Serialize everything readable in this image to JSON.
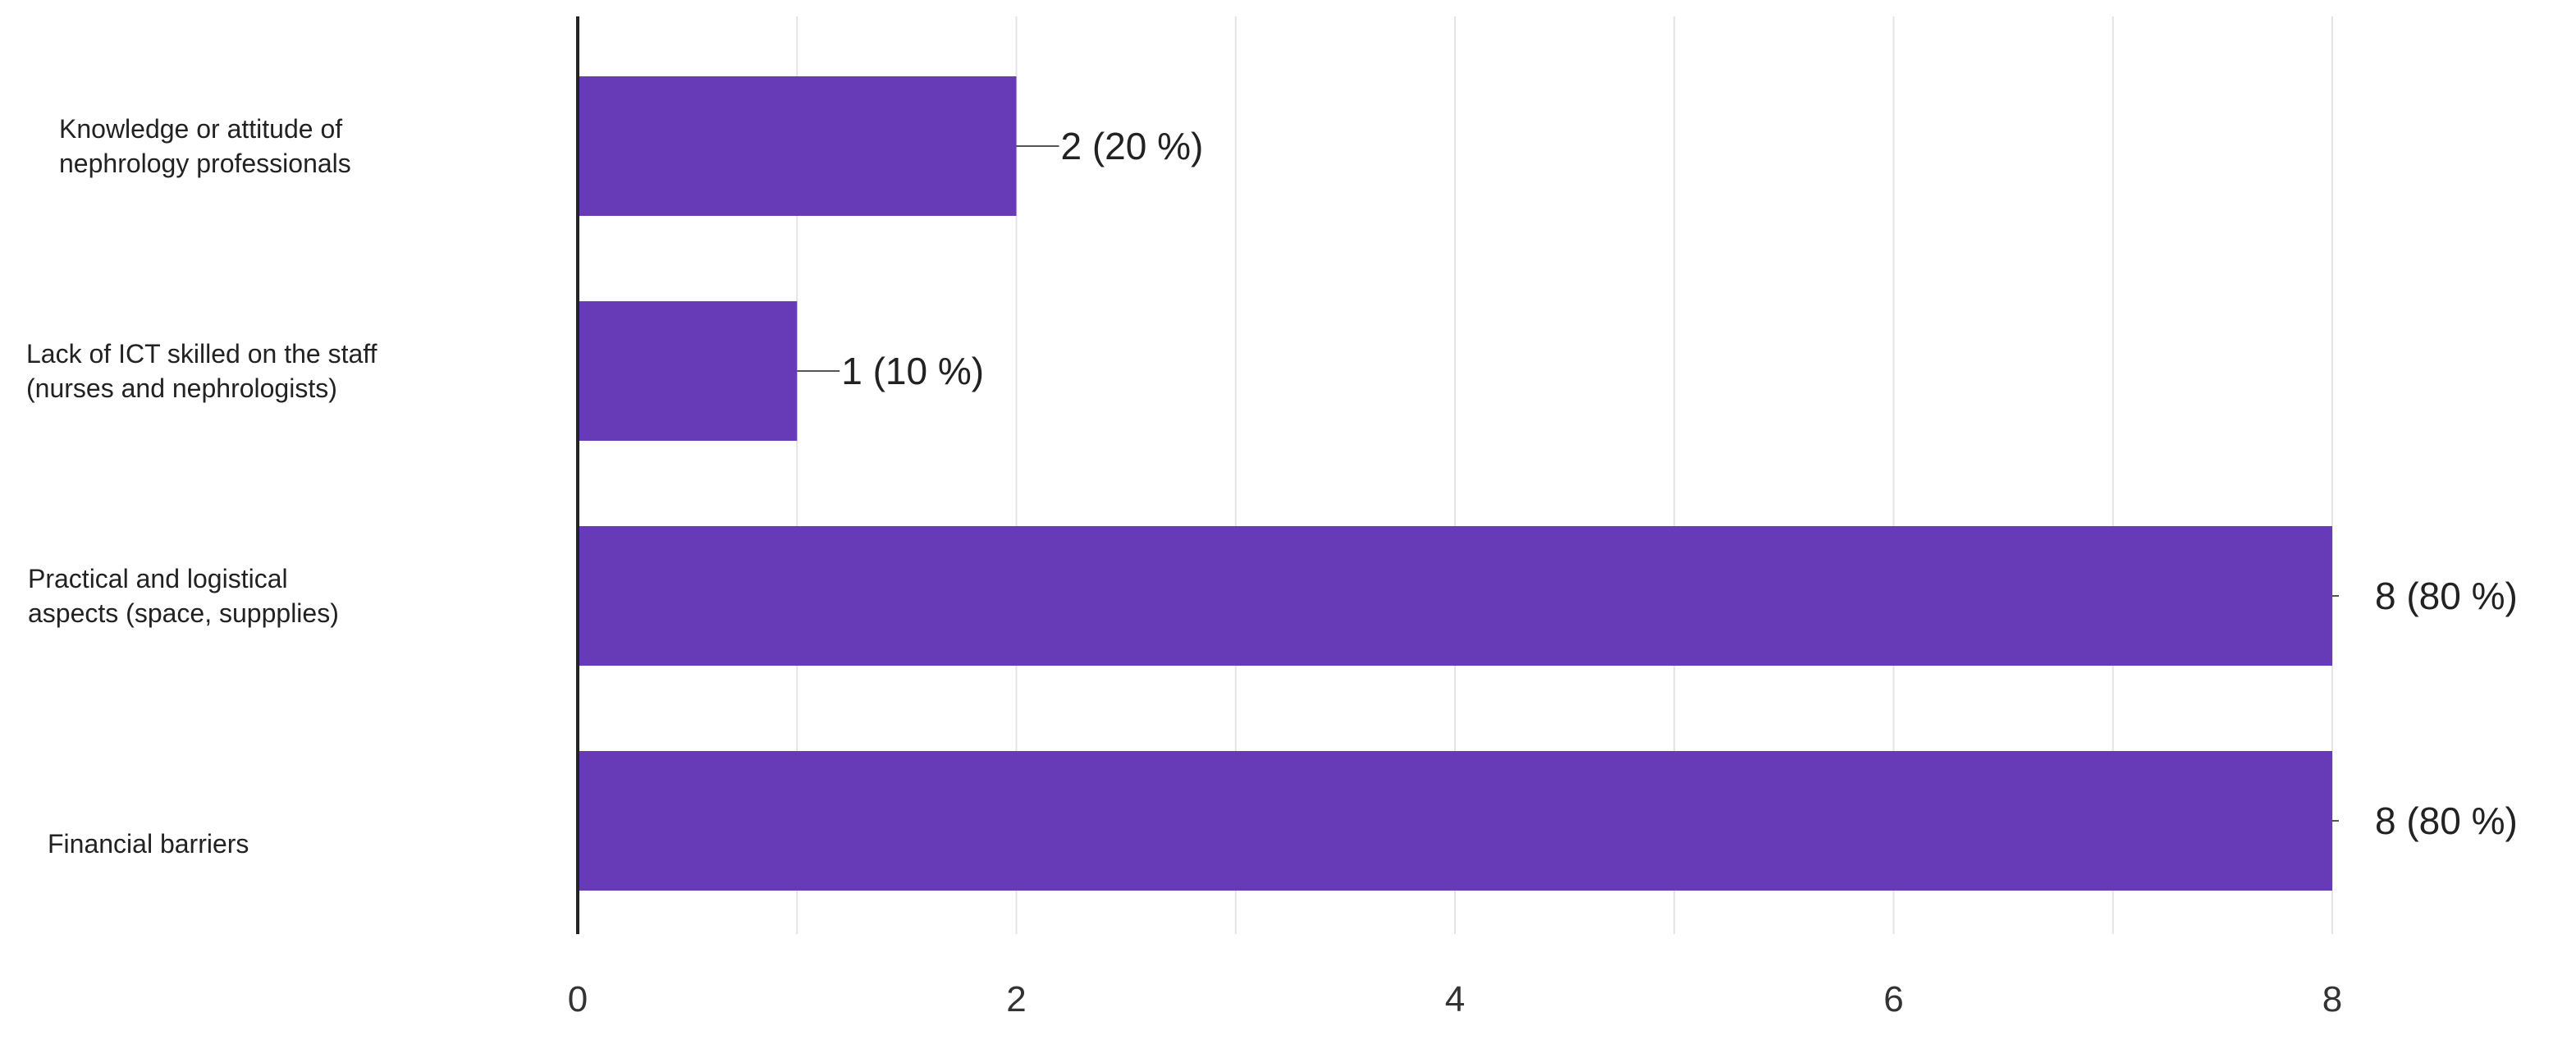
{
  "chart_data": {
    "type": "bar",
    "orientation": "horizontal",
    "categories": [
      [
        "Knowledge or attitude of",
        "nephrology professionals"
      ],
      [
        "Lack of ICT skilled on the staff",
        "(nurses and nephrologists)"
      ],
      [
        "Practical and logistical",
        "aspects (space, suppplies)"
      ],
      [
        "Financial barriers"
      ]
    ],
    "values": [
      2,
      1,
      8,
      8
    ],
    "data_labels": [
      "2 (20 %)",
      "1 (10 %)",
      "8 (80 %)",
      "8 (80 %)"
    ],
    "xlim": [
      0,
      8
    ],
    "xticks": [
      0,
      2,
      4,
      6,
      8
    ],
    "xtick_labels": [
      "0",
      "2",
      "4",
      "6",
      "8"
    ],
    "grid_minor_step": 1,
    "grid": true,
    "bar_color": "#673ab7",
    "title": "",
    "xlabel": "",
    "ylabel": ""
  }
}
